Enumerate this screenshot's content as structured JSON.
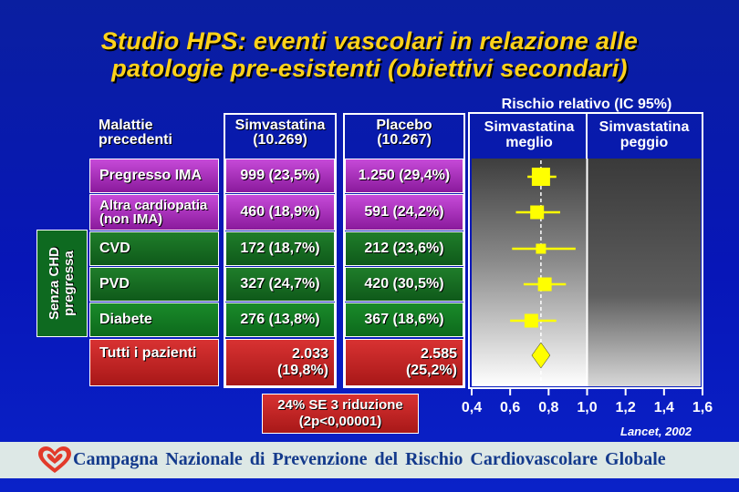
{
  "title": {
    "line1": "Studio HPS: eventi vascolari in relazione alle",
    "line2": "patologie pre-esistenti (obiettivi secondari)"
  },
  "headers": {
    "diseases": [
      "Malattie",
      "precedenti"
    ],
    "simva": [
      "Simvastatina",
      "(10.269)"
    ],
    "placebo": [
      "Placebo",
      "(10.267)"
    ],
    "rr_title": "Rischio relativo (IC 95%)",
    "better": [
      "Simvastatina",
      "meglio"
    ],
    "worse": [
      "Simvastatina",
      "peggio"
    ]
  },
  "group_label": [
    "Senza CHD",
    "pregressa"
  ],
  "rows": [
    {
      "label": "Pregresso IMA",
      "simva": "999 (23,5%)",
      "placebo": "1.250 (29,4%)"
    },
    {
      "label": "Altra cardiopatia (non IMA)",
      "label_lines": [
        "Altra cardiopatia",
        "(non IMA)"
      ],
      "simva": "460 (18,9%)",
      "placebo": "591 (24,2%)"
    },
    {
      "label": "CVD",
      "simva": "172 (18,7%)",
      "placebo": "212 (23,6%)"
    },
    {
      "label": "PVD",
      "simva": "327 (24,7%)",
      "placebo": "420 (30,5%)"
    },
    {
      "label": "Diabete",
      "simva": "276 (13,8%)",
      "placebo": "367 (18,6%)"
    },
    {
      "label": "Tutti i pazienti",
      "simva_lines": [
        "2.033",
        "(19,8%)"
      ],
      "placebo_lines": [
        "2.585",
        "(25,2%)"
      ]
    }
  ],
  "reduction": {
    "line1": "24% SE 3 riduzione",
    "line2": "(2p<0,00001)"
  },
  "source": "Lancet, 2002",
  "footer": "Campagna Nazionale di Prevenzione del Rischio Cardiovascolare Globale",
  "colors": {
    "title": "#ffd21a",
    "marker": "#ffff00",
    "background": "#0716b8"
  },
  "chart_data": {
    "type": "scatter",
    "title": "Rischio relativo (IC 95%)",
    "xlim": [
      0.4,
      1.6
    ],
    "x_ticks": [
      "0,4",
      "0,6",
      "0,8",
      "1,0",
      "1,2",
      "1,4",
      "1,6"
    ],
    "x_tick_values": [
      0.4,
      0.6,
      0.8,
      1.0,
      1.2,
      1.4,
      1.6
    ],
    "reference_line": 1.0,
    "overall_line": 0.76,
    "series": [
      {
        "values": [
          {
            "category": "Pregresso IMA",
            "rr": 0.76,
            "lo": 0.69,
            "hi": 0.84,
            "size": "large"
          },
          {
            "category": "Altra cardiopatia (non IMA)",
            "rr": 0.74,
            "lo": 0.63,
            "hi": 0.86,
            "size": "medium"
          },
          {
            "category": "CVD",
            "rr": 0.76,
            "lo": 0.61,
            "hi": 0.94,
            "size": "small"
          },
          {
            "category": "PVD",
            "rr": 0.78,
            "lo": 0.67,
            "hi": 0.89,
            "size": "medium"
          },
          {
            "category": "Diabete",
            "rr": 0.71,
            "lo": 0.6,
            "hi": 0.84,
            "size": "medium"
          },
          {
            "category": "Tutti i pazienti",
            "rr": 0.76,
            "lo": 0.72,
            "hi": 0.8,
            "shape": "diamond"
          }
        ]
      }
    ]
  }
}
